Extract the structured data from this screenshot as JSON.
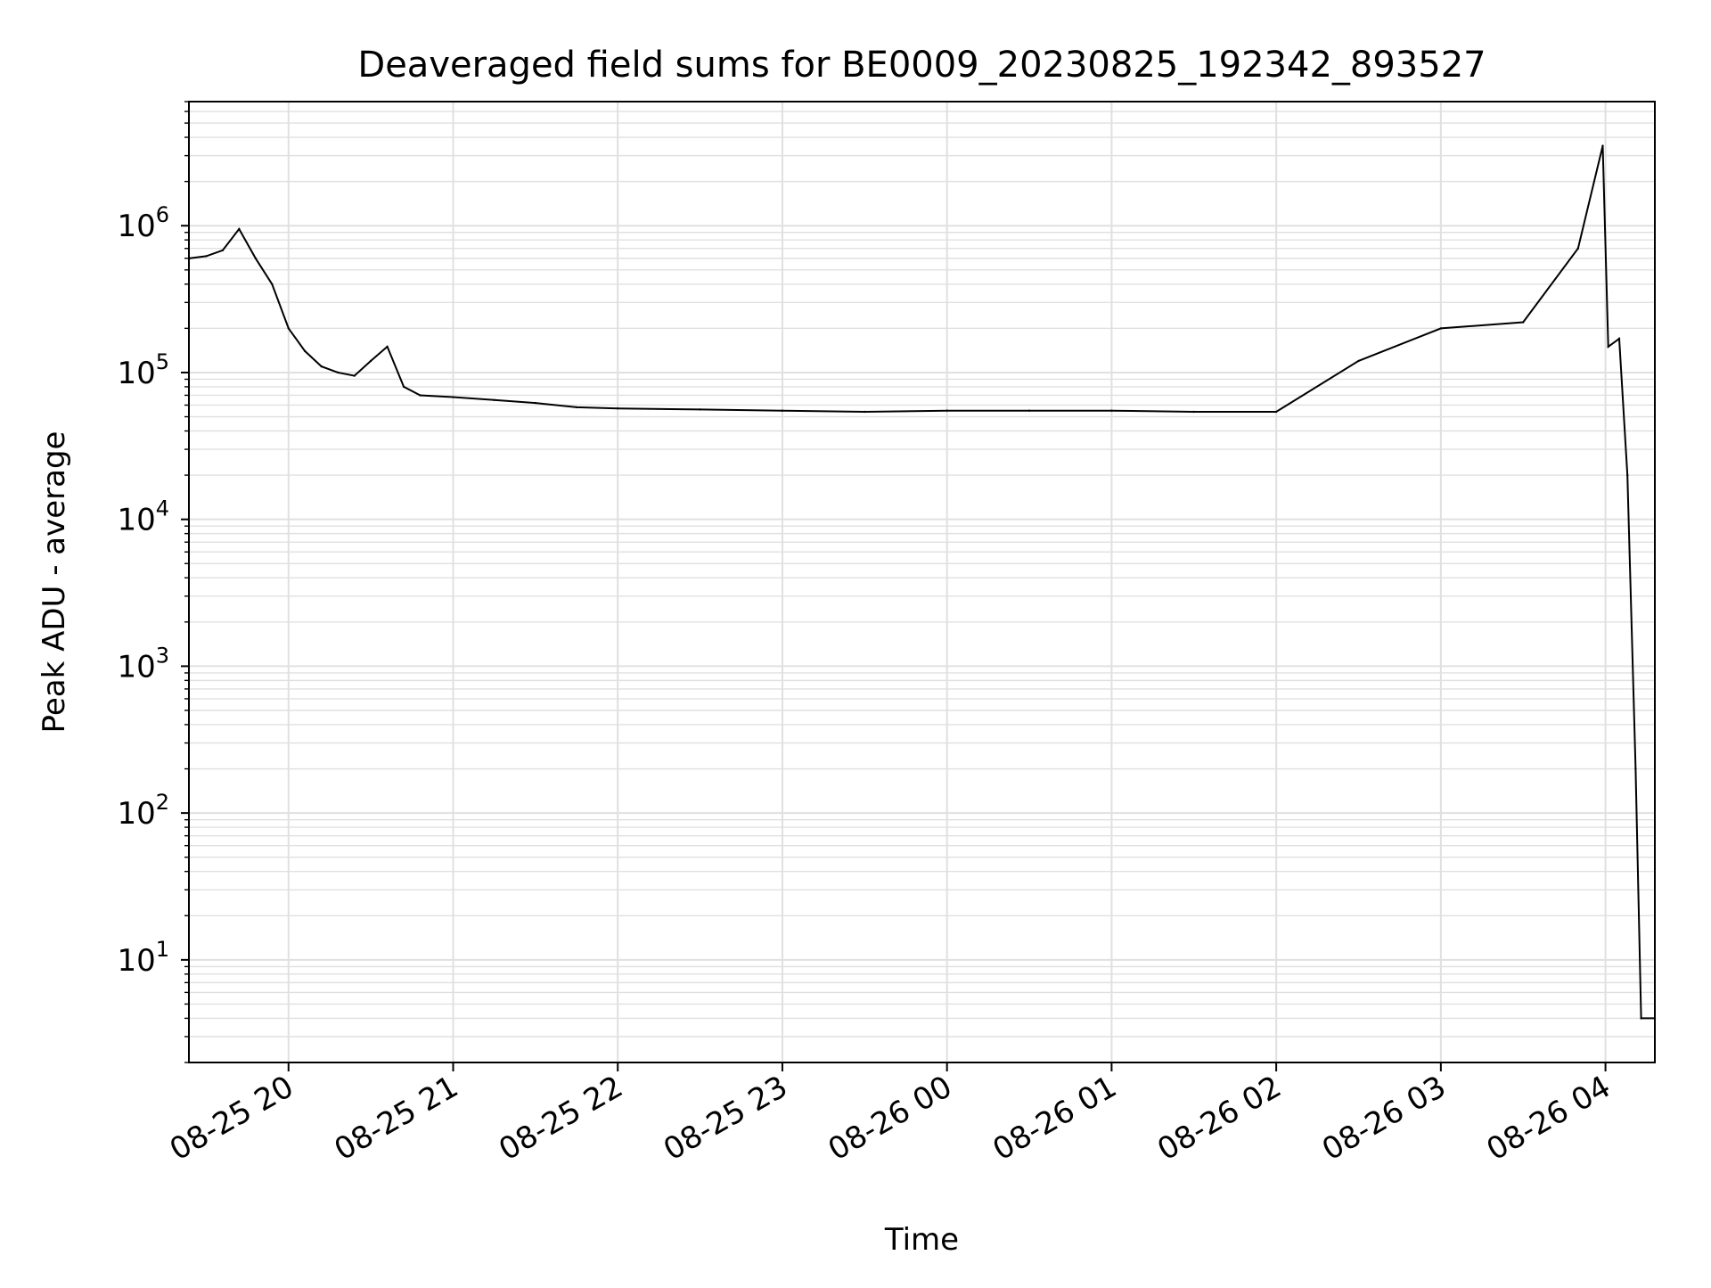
{
  "chart_data": {
    "type": "line",
    "title": "Deaveraged field sums for BE0009_20230825_192342_893527",
    "xlabel": "Time",
    "ylabel": "Peak ADU - average",
    "x_scale": "time",
    "y_scale": "log",
    "xlim": [
      "2023-08-25T19:23:42",
      "2023-08-26T04:18:00"
    ],
    "ylim": [
      2,
      7000000
    ],
    "x_ticks": [
      {
        "value": "2023-08-25T20:00",
        "label": "08-25 20"
      },
      {
        "value": "2023-08-25T21:00",
        "label": "08-25 21"
      },
      {
        "value": "2023-08-25T22:00",
        "label": "08-25 22"
      },
      {
        "value": "2023-08-25T23:00",
        "label": "08-25 23"
      },
      {
        "value": "2023-08-26T00:00",
        "label": "08-26 00"
      },
      {
        "value": "2023-08-26T01:00",
        "label": "08-26 01"
      },
      {
        "value": "2023-08-26T02:00",
        "label": "08-26 02"
      },
      {
        "value": "2023-08-26T03:00",
        "label": "08-26 03"
      },
      {
        "value": "2023-08-26T04:00",
        "label": "08-26 04"
      }
    ],
    "y_ticks": [
      {
        "value": 10,
        "base": "10",
        "exp": "1"
      },
      {
        "value": 100,
        "base": "10",
        "exp": "2"
      },
      {
        "value": 1000,
        "base": "10",
        "exp": "3"
      },
      {
        "value": 10000,
        "base": "10",
        "exp": "4"
      },
      {
        "value": 100000,
        "base": "10",
        "exp": "5"
      },
      {
        "value": 1000000,
        "base": "10",
        "exp": "6"
      }
    ],
    "grid": true,
    "line_color": "#000000",
    "grid_color": "#e0e0e0",
    "series": [
      {
        "values_xy": [
          [
            "2023-08-25T19:24",
            600000
          ],
          [
            "2023-08-25T19:30",
            620000
          ],
          [
            "2023-08-25T19:36",
            680000
          ],
          [
            "2023-08-25T19:42",
            950000
          ],
          [
            "2023-08-25T19:48",
            600000
          ],
          [
            "2023-08-25T19:54",
            400000
          ],
          [
            "2023-08-25T20:00",
            200000
          ],
          [
            "2023-08-25T20:06",
            140000
          ],
          [
            "2023-08-25T20:12",
            110000
          ],
          [
            "2023-08-25T20:18",
            100000
          ],
          [
            "2023-08-25T20:24",
            95000
          ],
          [
            "2023-08-25T20:30",
            120000
          ],
          [
            "2023-08-25T20:36",
            150000
          ],
          [
            "2023-08-25T20:42",
            80000
          ],
          [
            "2023-08-25T20:48",
            70000
          ],
          [
            "2023-08-25T21:00",
            68000
          ],
          [
            "2023-08-25T21:15",
            65000
          ],
          [
            "2023-08-25T21:30",
            62000
          ],
          [
            "2023-08-25T21:45",
            58000
          ],
          [
            "2023-08-25T22:00",
            57000
          ],
          [
            "2023-08-25T22:30",
            56000
          ],
          [
            "2023-08-25T23:00",
            55000
          ],
          [
            "2023-08-25T23:30",
            54000
          ],
          [
            "2023-08-26T00:00",
            55000
          ],
          [
            "2023-08-26T00:30",
            55000
          ],
          [
            "2023-08-26T01:00",
            55000
          ],
          [
            "2023-08-26T01:30",
            54000
          ],
          [
            "2023-08-26T02:00",
            54000
          ],
          [
            "2023-08-26T02:30",
            120000
          ],
          [
            "2023-08-26T03:00",
            200000
          ],
          [
            "2023-08-26T03:30",
            220000
          ],
          [
            "2023-08-26T03:50",
            700000
          ],
          [
            "2023-08-26T03:59",
            3500000
          ],
          [
            "2023-08-26T04:01",
            150000
          ],
          [
            "2023-08-26T04:05",
            170000
          ],
          [
            "2023-08-26T04:08",
            20000
          ],
          [
            "2023-08-26T04:11",
            200
          ],
          [
            "2023-08-26T04:13",
            4
          ],
          [
            "2023-08-26T04:18",
            4
          ]
        ]
      }
    ]
  }
}
